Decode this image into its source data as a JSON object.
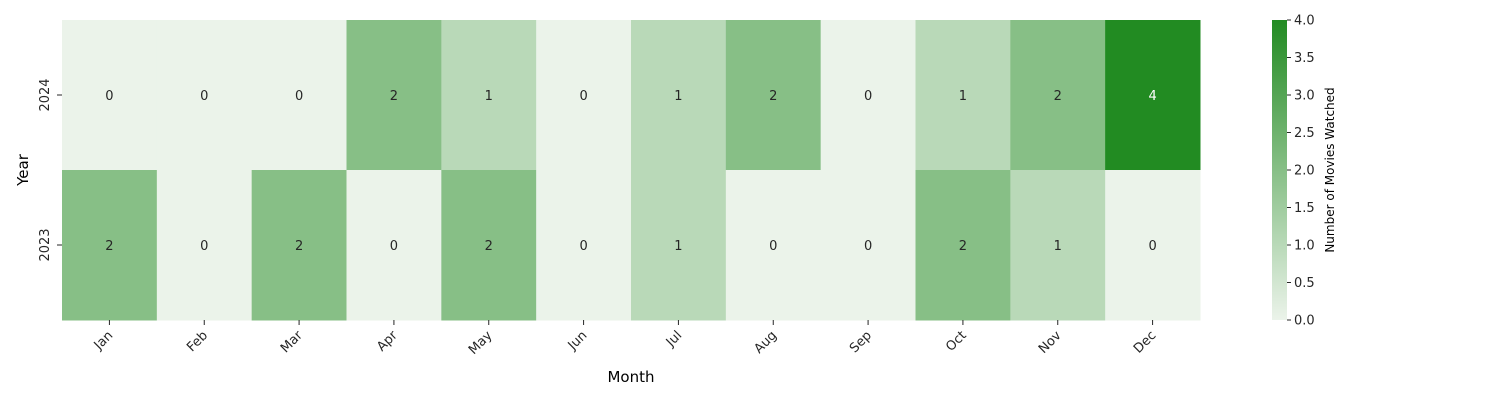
{
  "chart_data": {
    "type": "heatmap",
    "title": "",
    "xlabel": "Month",
    "ylabel": "Year",
    "x_categories": [
      "Jan",
      "Feb",
      "Mar",
      "Apr",
      "May",
      "Jun",
      "Jul",
      "Aug",
      "Sep",
      "Oct",
      "Nov",
      "Dec"
    ],
    "y_categories": [
      "2024",
      "2023"
    ],
    "values": [
      [
        0,
        0,
        0,
        2,
        1,
        0,
        1,
        2,
        0,
        1,
        2,
        4
      ],
      [
        2,
        0,
        2,
        0,
        2,
        0,
        1,
        0,
        0,
        2,
        1,
        0
      ]
    ],
    "colorbar": {
      "label": "Number of Movies Watched",
      "range": [
        0,
        4
      ],
      "ticks": [
        "0.0",
        "0.5",
        "1.0",
        "1.5",
        "2.0",
        "2.5",
        "3.0",
        "3.5",
        "4.0"
      ],
      "color_low": "#ebf3ea",
      "color_high": "#228b22"
    },
    "annotations": true
  }
}
